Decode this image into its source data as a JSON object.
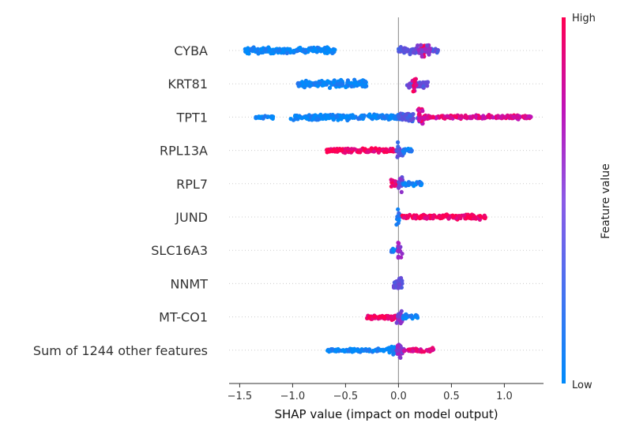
{
  "chart_data": {
    "type": "scatter",
    "subtype": "shap-beeswarm",
    "xlabel": "SHAP value (impact on model output)",
    "xlim": [
      -1.6,
      1.37
    ],
    "xticks": [
      -1.5,
      -1.0,
      -0.5,
      0.0,
      0.5,
      1.0
    ],
    "xtick_labels": [
      "−1.5",
      "−1.0",
      "−0.5",
      "0.0",
      "0.5",
      "1.0"
    ],
    "grid": "dotted horizontal guide per feature row",
    "zero_line": true,
    "colorbar": {
      "label": "Feature value",
      "high_label": "High",
      "low_label": "Low",
      "high_color": "#ff0052",
      "low_color": "#008bfb"
    },
    "features": [
      {
        "name": "CYBA",
        "clusters": [
          {
            "min": -1.45,
            "max": -0.6,
            "value": 0.02,
            "spread": 0.4
          },
          {
            "min": 0.0,
            "max": 0.38,
            "value": 0.35,
            "spread": 0.4
          },
          {
            "min": 0.2,
            "max": 0.25,
            "value": 0.95,
            "spread": 1.0
          },
          {
            "min": 0.18,
            "max": 0.3,
            "value": 0.55,
            "spread": 0.7
          }
        ]
      },
      {
        "name": "KRT81",
        "clusters": [
          {
            "min": -0.95,
            "max": -0.3,
            "value": 0.03,
            "spread": 0.45
          },
          {
            "min": 0.08,
            "max": 0.28,
            "value": 0.4,
            "spread": 0.5
          },
          {
            "min": 0.13,
            "max": 0.17,
            "value": 0.9,
            "spread": 1.0
          }
        ]
      },
      {
        "name": "TPT1",
        "clusters": [
          {
            "min": -1.35,
            "max": -1.18,
            "value": 0.0,
            "spread": 0.2
          },
          {
            "min": -1.02,
            "max": 0.0,
            "value": 0.04,
            "spread": 0.35
          },
          {
            "min": 0.0,
            "max": 0.2,
            "value": 0.3,
            "spread": 0.5
          },
          {
            "min": 0.18,
            "max": 0.24,
            "value": 0.85,
            "spread": 1.0
          },
          {
            "min": 0.24,
            "max": 1.25,
            "value": 0.85,
            "spread": 0.25
          }
        ]
      },
      {
        "name": "RPL13A",
        "clusters": [
          {
            "min": -0.68,
            "max": -0.02,
            "value": 0.98,
            "spread": 0.3
          },
          {
            "min": -0.02,
            "max": 0.04,
            "value": 0.3,
            "spread": 1.0
          },
          {
            "min": 0.02,
            "max": 0.13,
            "value": 0.05,
            "spread": 0.3
          }
        ]
      },
      {
        "name": "RPL7",
        "clusters": [
          {
            "min": -0.07,
            "max": 0.0,
            "value": 0.95,
            "spread": 0.5
          },
          {
            "min": 0.0,
            "max": 0.04,
            "value": 0.45,
            "spread": 1.0
          },
          {
            "min": 0.04,
            "max": 0.22,
            "value": 0.05,
            "spread": 0.25
          }
        ]
      },
      {
        "name": "JUND",
        "clusters": [
          {
            "min": -0.02,
            "max": 0.03,
            "value": 0.15,
            "spread": 1.0
          },
          {
            "min": 0.03,
            "max": 0.83,
            "value": 0.97,
            "spread": 0.3
          }
        ]
      },
      {
        "name": "SLC16A3",
        "clusters": [
          {
            "min": -0.07,
            "max": 0.0,
            "value": 0.05,
            "spread": 0.35
          },
          {
            "min": -0.01,
            "max": 0.04,
            "value": 0.6,
            "spread": 1.0
          }
        ]
      },
      {
        "name": "NNMT",
        "clusters": [
          {
            "min": -0.05,
            "max": 0.04,
            "value": 0.35,
            "spread": 1.0
          }
        ]
      },
      {
        "name": "MT-CO1",
        "clusters": [
          {
            "min": -0.3,
            "max": -0.02,
            "value": 0.97,
            "spread": 0.3
          },
          {
            "min": -0.02,
            "max": 0.04,
            "value": 0.5,
            "spread": 1.0
          },
          {
            "min": 0.04,
            "max": 0.18,
            "value": 0.05,
            "spread": 0.3
          }
        ]
      },
      {
        "name": "Sum of 1244 other features",
        "clusters": [
          {
            "min": -0.67,
            "max": -0.05,
            "value": 0.03,
            "spread": 0.2
          },
          {
            "min": -0.1,
            "max": 0.0,
            "value": 0.1,
            "spread": 0.5
          },
          {
            "min": -0.02,
            "max": 0.05,
            "value": 0.55,
            "spread": 1.0
          },
          {
            "min": 0.05,
            "max": 0.33,
            "value": 0.9,
            "spread": 0.3
          }
        ]
      }
    ]
  }
}
